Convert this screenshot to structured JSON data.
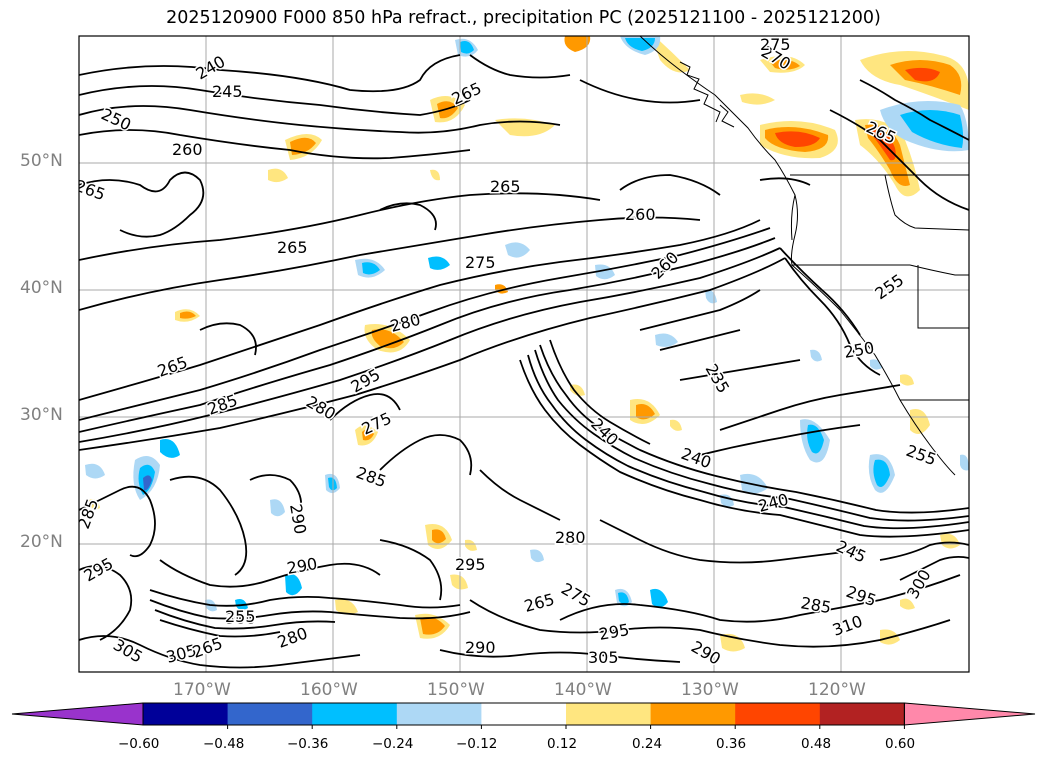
{
  "title": "2025120900 F000 850 hPa refract., precipitation PC (2025121100 - 2025121200)",
  "axes": {
    "lat_labels": [
      "50°N",
      "40°N",
      "30°N",
      "20°N"
    ],
    "lon_labels": [
      "170°W",
      "160°W",
      "150°W",
      "140°W",
      "130°W",
      "120°W"
    ]
  },
  "contour_labels": [
    "240",
    "245",
    "250",
    "260",
    "265",
    "265",
    "265",
    "265",
    "275",
    "270",
    "265",
    "255",
    "260",
    "275",
    "260",
    "280",
    "265",
    "285",
    "295",
    "280",
    "235",
    "250",
    "255",
    "240",
    "240",
    "240",
    "245",
    "285",
    "275",
    "280",
    "290",
    "285",
    "295",
    "290",
    "295",
    "275",
    "265",
    "300",
    "305",
    "280",
    "290",
    "295",
    "290",
    "285",
    "305",
    "305",
    "295",
    "310",
    "300",
    "255",
    "265"
  ],
  "colorbar": {
    "ticks": [
      "−0.60",
      "−0.48",
      "−0.36",
      "−0.24",
      "−0.12",
      "0.12",
      "0.24",
      "0.36",
      "0.48",
      "0.60"
    ],
    "colors": [
      "#9933cc",
      "#000099",
      "#3366cc",
      "#00bfff",
      "#add8f5",
      "#ffffff",
      "#ffe680",
      "#ff9900",
      "#ff4500",
      "#b22222",
      "#ff88aa"
    ]
  }
}
